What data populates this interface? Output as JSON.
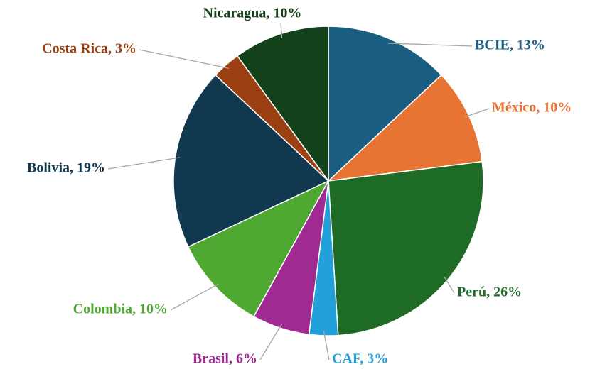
{
  "chart_data": {
    "type": "pie",
    "values": [
      13,
      10,
      26,
      3,
      6,
      10,
      19,
      3,
      10
    ],
    "value_labels": [
      "BCIE, 13%",
      "México, 10%",
      "Perú, 26%",
      "CAF, 3%",
      "Brasil, 6%",
      "Colombia, 10%",
      "Bolivia,  19%",
      "Costa Rica, 3%",
      "Nicaragua, 10%"
    ],
    "colors": [
      "#1a5e82",
      "#e87433",
      "#1e6b26",
      "#22a0d9",
      "#9e2a92",
      "#4ea832",
      "#10384f",
      "#9b4013",
      "#13421a"
    ]
  }
}
